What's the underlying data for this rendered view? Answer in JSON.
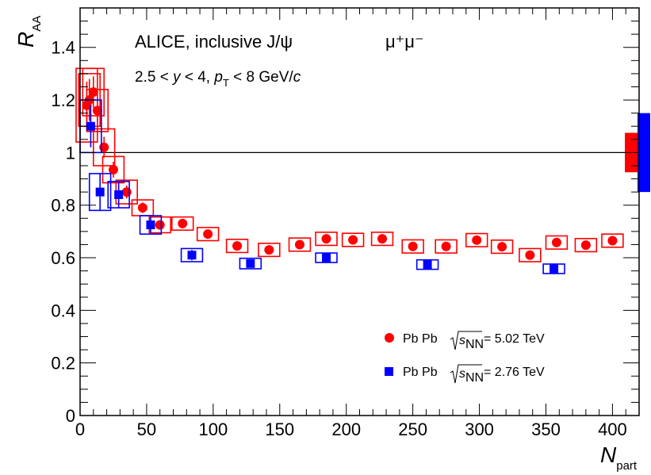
{
  "chart_data": {
    "type": "scatter",
    "xlabel_main": "N",
    "xlabel_sub": "part",
    "ylabel_main": "R",
    "ylabel_sub": "AA",
    "xlim": [
      0,
      420
    ],
    "ylim": [
      0,
      1.55
    ],
    "x_ticks": [
      0,
      50,
      100,
      150,
      200,
      250,
      300,
      350,
      400
    ],
    "y_ticks": [
      0,
      0.2,
      0.4,
      0.6,
      0.8,
      1,
      1.2,
      1.4
    ],
    "y_tick_labels": [
      "0",
      "0.2",
      "0.4",
      "0.6",
      "0.8",
      "1",
      "1.2",
      "1.4"
    ],
    "reference_line": 1,
    "annotations": {
      "line1_a": "ALICE, inclusive J/ψ",
      "line1_b": "μ⁺μ⁻",
      "line2_a": "2.5 < ",
      "line2_y": "y",
      "line2_b": " < 4, ",
      "line2_p": "p",
      "line2_T": "T",
      "line2_c": " < 8 GeV/",
      "line2_cc": "c"
    },
    "legend": {
      "position": "bottom-right",
      "s_symbol": "s",
      "nn_sub": "NN"
    },
    "series": [
      {
        "name_a": "Pb Pb",
        "name_b": "= 5.02 TeV",
        "color": "#ff0000",
        "marker": "circle",
        "global_uncertainty": [
          0.925,
          1.075
        ],
        "points": [
          {
            "x": 5,
            "y": 1.18,
            "stat": 0.09,
            "sys": 0.14
          },
          {
            "x": 7,
            "y": 1.2,
            "stat": 0.08,
            "sys": 0.1
          },
          {
            "x": 10,
            "y": 1.23,
            "stat": 0.06,
            "sys": 0.09
          },
          {
            "x": 13,
            "y": 1.16,
            "stat": 0.05,
            "sys": 0.08
          },
          {
            "x": 18,
            "y": 1.02,
            "stat": 0.04,
            "sys": 0.07
          },
          {
            "x": 25,
            "y": 0.935,
            "stat": 0.03,
            "sys": 0.05
          },
          {
            "x": 35,
            "y": 0.85,
            "stat": 0.025,
            "sys": 0.045
          },
          {
            "x": 47,
            "y": 0.79,
            "stat": 0.02,
            "sys": 0.03
          },
          {
            "x": 60,
            "y": 0.725,
            "stat": 0.015,
            "sys": 0.03
          },
          {
            "x": 77,
            "y": 0.73,
            "stat": 0.015,
            "sys": 0.025
          },
          {
            "x": 96,
            "y": 0.69,
            "stat": 0.015,
            "sys": 0.025
          },
          {
            "x": 118,
            "y": 0.645,
            "stat": 0.012,
            "sys": 0.025
          },
          {
            "x": 142,
            "y": 0.63,
            "stat": 0.012,
            "sys": 0.025
          },
          {
            "x": 165,
            "y": 0.65,
            "stat": 0.012,
            "sys": 0.025
          },
          {
            "x": 185,
            "y": 0.672,
            "stat": 0.012,
            "sys": 0.025
          },
          {
            "x": 205,
            "y": 0.668,
            "stat": 0.012,
            "sys": 0.025
          },
          {
            "x": 227,
            "y": 0.672,
            "stat": 0.012,
            "sys": 0.025
          },
          {
            "x": 250,
            "y": 0.643,
            "stat": 0.012,
            "sys": 0.025
          },
          {
            "x": 275,
            "y": 0.643,
            "stat": 0.012,
            "sys": 0.025
          },
          {
            "x": 298,
            "y": 0.667,
            "stat": 0.012,
            "sys": 0.025
          },
          {
            "x": 317,
            "y": 0.642,
            "stat": 0.012,
            "sys": 0.025
          },
          {
            "x": 338,
            "y": 0.61,
            "stat": 0.012,
            "sys": 0.025
          },
          {
            "x": 358,
            "y": 0.658,
            "stat": 0.012,
            "sys": 0.025
          },
          {
            "x": 380,
            "y": 0.648,
            "stat": 0.012,
            "sys": 0.025
          },
          {
            "x": 400,
            "y": 0.665,
            "stat": 0.012,
            "sys": 0.025
          }
        ]
      },
      {
        "name_a": "Pb Pb",
        "name_b": "= 2.76 TeV",
        "color": "#0000ff",
        "marker": "square",
        "global_uncertainty": [
          0.85,
          1.15
        ],
        "points": [
          {
            "x": 8,
            "y": 1.1,
            "stat": 0.08,
            "sys": 0.1
          },
          {
            "x": 15,
            "y": 0.85,
            "stat": 0.07,
            "sys": 0.07
          },
          {
            "x": 29,
            "y": 0.84,
            "stat": 0.05,
            "sys": 0.05
          },
          {
            "x": 53,
            "y": 0.725,
            "stat": 0.03,
            "sys": 0.035
          },
          {
            "x": 84,
            "y": 0.61,
            "stat": 0.02,
            "sys": 0.025
          },
          {
            "x": 128,
            "y": 0.578,
            "stat": 0.012,
            "sys": 0.02
          },
          {
            "x": 185,
            "y": 0.6,
            "stat": 0.01,
            "sys": 0.018
          },
          {
            "x": 261,
            "y": 0.574,
            "stat": 0.01,
            "sys": 0.018
          },
          {
            "x": 356,
            "y": 0.558,
            "stat": 0.01,
            "sys": 0.018
          }
        ]
      }
    ]
  }
}
